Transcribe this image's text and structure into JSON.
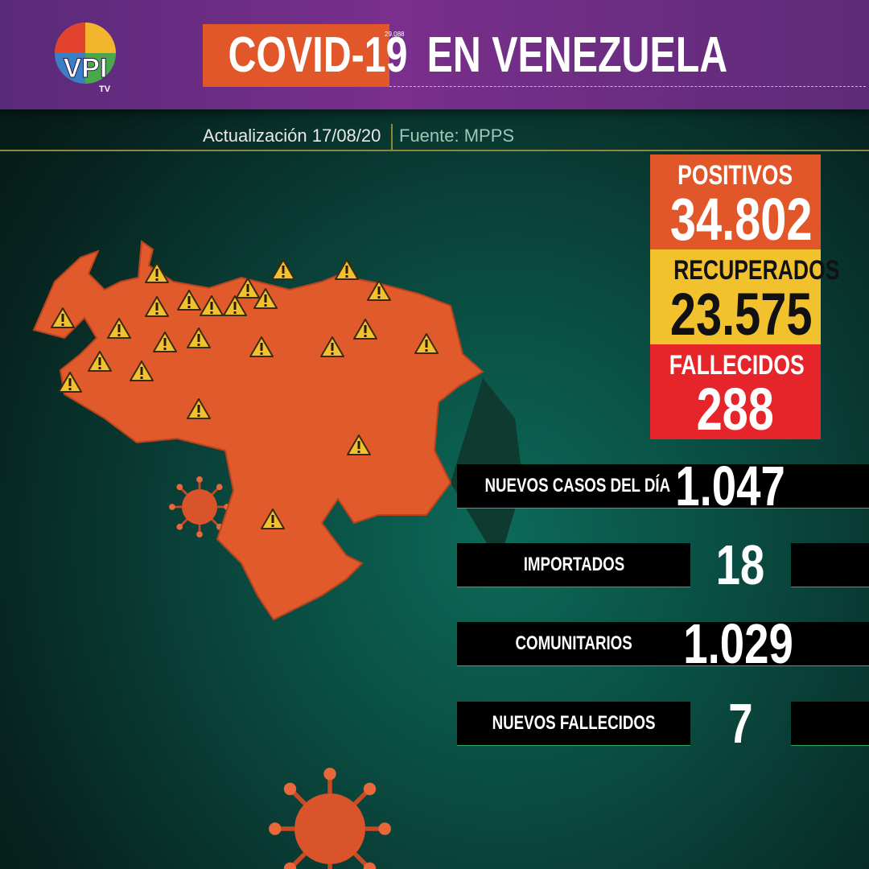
{
  "header": {
    "title_highlight": "COVID-19",
    "title_rest": "EN VENEZUELA",
    "small_note": "29.088",
    "logo_main": "VPI",
    "logo_sub": "TV"
  },
  "subheader": {
    "update": "Actualización 17/08/20",
    "source": "Fuente: MPPS"
  },
  "totals": [
    {
      "label": "POSITIVOS",
      "value": "34.802"
    },
    {
      "label": "RECUPERADOS",
      "value": "23.575"
    },
    {
      "label": "FALLECIDOS",
      "value": "288"
    }
  ],
  "daily": [
    {
      "label": "NUEVOS CASOS DEL DÍA",
      "value": "1.047"
    },
    {
      "label": "IMPORTADOS",
      "value": "18"
    },
    {
      "label": "COMUNITARIOS",
      "value": "1.029"
    },
    {
      "label": "NUEVOS FALLECIDOS",
      "value": "7"
    }
  ]
}
